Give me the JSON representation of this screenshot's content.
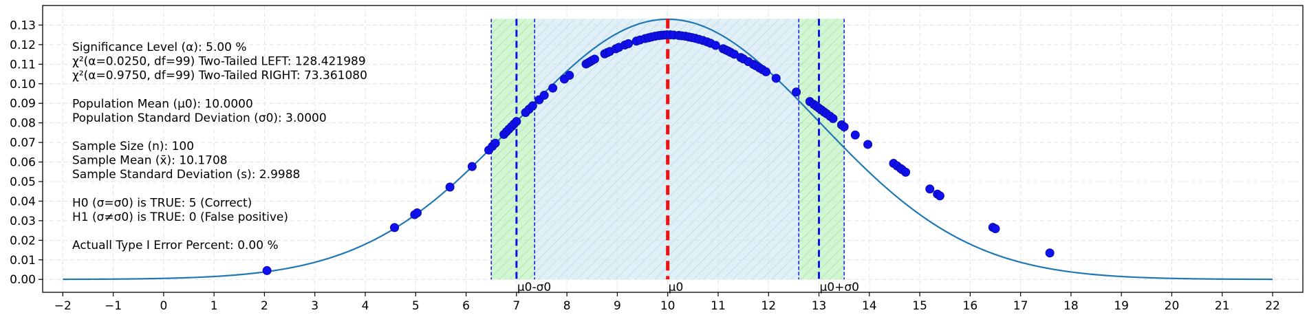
{
  "chart_data": {
    "type": "line",
    "title": "",
    "xlabel": "",
    "ylabel": "",
    "xlim": [
      -2.4,
      22.6
    ],
    "ylim": [
      -0.0066,
      0.14
    ],
    "x_ticks": [
      -2,
      -1,
      0,
      1,
      2,
      3,
      4,
      5,
      6,
      7,
      8,
      9,
      10,
      11,
      12,
      13,
      14,
      15,
      16,
      17,
      18,
      19,
      20,
      21,
      22
    ],
    "y_ticks": [
      0.0,
      0.01,
      0.02,
      0.03,
      0.04,
      0.05,
      0.06,
      0.07,
      0.08,
      0.09,
      0.1,
      0.11,
      0.12,
      0.13
    ],
    "grid": true,
    "curve": {
      "mean": 10.0,
      "std": 3.0,
      "x_range": [
        -2,
        22
      ],
      "color": "#1f77b4"
    },
    "sample_points": {
      "color": "#1010ee",
      "x": [
        2.05,
        4.58,
        4.98,
        5.03,
        5.68,
        6.12,
        6.45,
        6.52,
        6.58,
        6.75,
        6.8,
        6.85,
        6.9,
        6.95,
        7.0,
        7.18,
        7.25,
        7.32,
        7.45,
        7.55,
        7.72,
        7.95,
        8.05,
        8.38,
        8.42,
        8.46,
        8.5,
        8.55,
        8.75,
        8.8,
        8.85,
        8.97,
        9.03,
        9.15,
        9.22,
        9.38,
        9.45,
        9.55,
        9.62,
        9.68,
        9.75,
        9.82,
        9.88,
        9.93,
        9.98,
        10.05,
        10.12,
        10.22,
        10.28,
        10.35,
        10.42,
        10.48,
        10.55,
        10.62,
        10.7,
        10.78,
        10.85,
        10.95,
        11.1,
        11.15,
        11.2,
        11.25,
        11.32,
        11.45,
        11.5,
        11.6,
        11.7,
        11.75,
        11.82,
        11.88,
        11.95,
        12.15,
        12.55,
        12.82,
        12.9,
        12.95,
        13.0,
        13.05,
        13.1,
        13.15,
        13.22,
        13.28,
        13.45,
        13.5,
        13.72,
        13.97,
        14.48,
        14.55,
        14.62,
        14.65,
        14.72,
        15.2,
        15.35,
        15.4,
        16.45,
        16.5,
        17.58
      ],
      "y": [
        0.0045,
        0.0265,
        0.0331,
        0.034,
        0.0472,
        0.0577,
        0.0661,
        0.068,
        0.0696,
        0.0741,
        0.0755,
        0.0768,
        0.0781,
        0.0794,
        0.0807,
        0.0853,
        0.087,
        0.0887,
        0.0918,
        0.0941,
        0.0978,
        0.1024,
        0.1043,
        0.1101,
        0.1107,
        0.1113,
        0.1119,
        0.1126,
        0.1153,
        0.1159,
        0.1165,
        0.1179,
        0.1186,
        0.1198,
        0.1205,
        0.1218,
        0.1224,
        0.1231,
        0.1235,
        0.1239,
        0.1243,
        0.1246,
        0.1248,
        0.1249,
        0.125,
        0.125,
        0.1249,
        0.1247,
        0.1245,
        0.1243,
        0.1239,
        0.1236,
        0.1232,
        0.1227,
        0.1221,
        0.1214,
        0.1207,
        0.1196,
        0.1179,
        0.1173,
        0.1167,
        0.116,
        0.1151,
        0.1134,
        0.1127,
        0.1113,
        0.1099,
        0.1092,
        0.1081,
        0.1072,
        0.1061,
        0.1028,
        0.0958,
        0.0909,
        0.0894,
        0.0885,
        0.0875,
        0.0866,
        0.0856,
        0.0847,
        0.0834,
        0.0822,
        0.079,
        0.078,
        0.0738,
        0.069,
        0.0593,
        0.058,
        0.0567,
        0.0561,
        0.0548,
        0.0462,
        0.0436,
        0.0427,
        0.0266,
        0.0259,
        0.0135
      ]
    },
    "regions": {
      "rejection_left": [
        6.5,
        7.36
      ],
      "rejection_right": [
        12.6,
        13.5
      ],
      "acceptance": [
        7.36,
        12.6
      ],
      "top": 0.1332,
      "green": "#b3f0b3",
      "blue": "#cde4f0",
      "boundary_color": "#1010ee"
    },
    "vlines": [
      {
        "x": 10.0,
        "label": "μ0",
        "color": "#ee1111",
        "dash": true
      },
      {
        "x": 7.0,
        "label": "μ0-σ0",
        "color": "#1010ee",
        "dash": true
      },
      {
        "x": 13.0,
        "label": "μ0+σ0",
        "color": "#1010ee",
        "dash": true
      }
    ],
    "annotation_lines": [
      "Significance Level (α): 5.00 %",
      "χ²(α=0.0250, df=99) Two-Tailed LEFT: 128.421989",
      "χ²(α=0.9750, df=99) Two-Tailed RIGHT: 73.361080",
      "",
      "Population Mean (μ0): 10.0000",
      "Population Standard Deviation (σ0): 3.0000",
      "",
      "Sample Size (n): 100",
      "Sample Mean (x̄): 10.1708",
      "Sample Standard Deviation (s): 2.9988",
      "",
      "H0 (σ=σ0) is TRUE: 5 (Correct)",
      "H1 (σ≠σ0) is TRUE: 0 (False positive)",
      "",
      "Actuall Type I Error Percent: 0.00 %"
    ]
  }
}
